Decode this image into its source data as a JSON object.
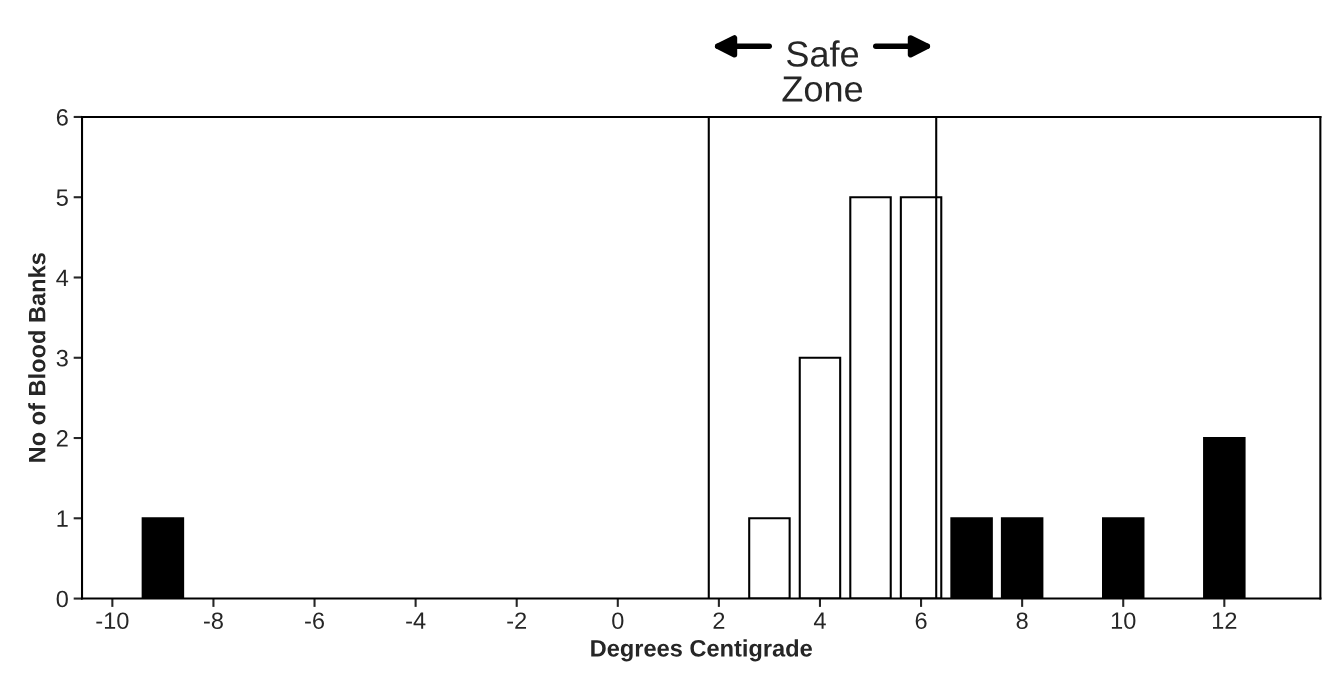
{
  "chart_data": {
    "type": "bar",
    "x": [
      -9,
      3,
      4,
      5,
      6,
      7,
      8,
      10,
      12
    ],
    "values": [
      1,
      1,
      3,
      5,
      5,
      1,
      1,
      1,
      2
    ],
    "colors": [
      "#000000",
      "#ffffff",
      "#ffffff",
      "#ffffff",
      "#ffffff",
      "#000000",
      "#000000",
      "#000000",
      "#000000"
    ],
    "xlabel": "Degrees Centigrade",
    "ylabel": "No of Blood Banks",
    "xlim": [
      -10.6,
      13.9
    ],
    "xticks": [
      -10,
      -8,
      -6,
      -4,
      -2,
      0,
      2,
      4,
      6,
      8,
      10,
      12
    ],
    "ylim": [
      0,
      6
    ],
    "yticks": [
      0,
      1,
      2,
      3,
      4,
      5,
      6
    ],
    "ref_lines": [
      {
        "axis": "x",
        "value": 1.8,
        "color": "#000000"
      },
      {
        "axis": "x",
        "value": 6.3,
        "color": "#000000"
      }
    ],
    "annotations": [
      "Safe\nZone"
    ],
    "grid": false
  }
}
